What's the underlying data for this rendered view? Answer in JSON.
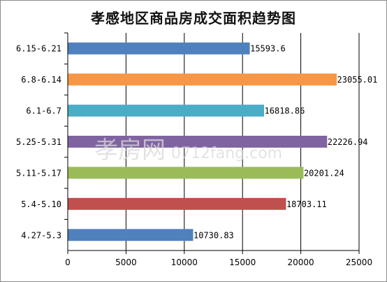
{
  "chart_data": {
    "type": "bar",
    "orientation": "horizontal",
    "title": "孝感地区商品房成交面积趋势图",
    "categories": [
      "6.15-6.21",
      "6.8-6.14",
      "6.1-6.7",
      "5.25-5.31",
      "5.11-5.17",
      "5.4-5.10",
      "4.27-5.3"
    ],
    "values": [
      15593.6,
      23055.01,
      16818.86,
      22226.94,
      20201.24,
      18703.11,
      10730.83
    ],
    "value_labels": [
      "15593.6",
      "23055.01",
      "16818.86",
      "22226.94",
      "20201.24",
      "18703.11",
      "10730.83"
    ],
    "colors": [
      "#4f81bd",
      "#f79646",
      "#4bacc6",
      "#8064a2",
      "#9bbb59",
      "#c0504d",
      "#4f81bd"
    ],
    "xlim": [
      0,
      25000
    ],
    "xticks": [
      "0",
      "5000",
      "10000",
      "15000",
      "20000",
      "25000"
    ],
    "xlabel": "",
    "ylabel": "",
    "grid": "vertical",
    "legend": "none"
  },
  "watermark": {
    "brand": "孝房网",
    "site": "0712fang.com"
  }
}
